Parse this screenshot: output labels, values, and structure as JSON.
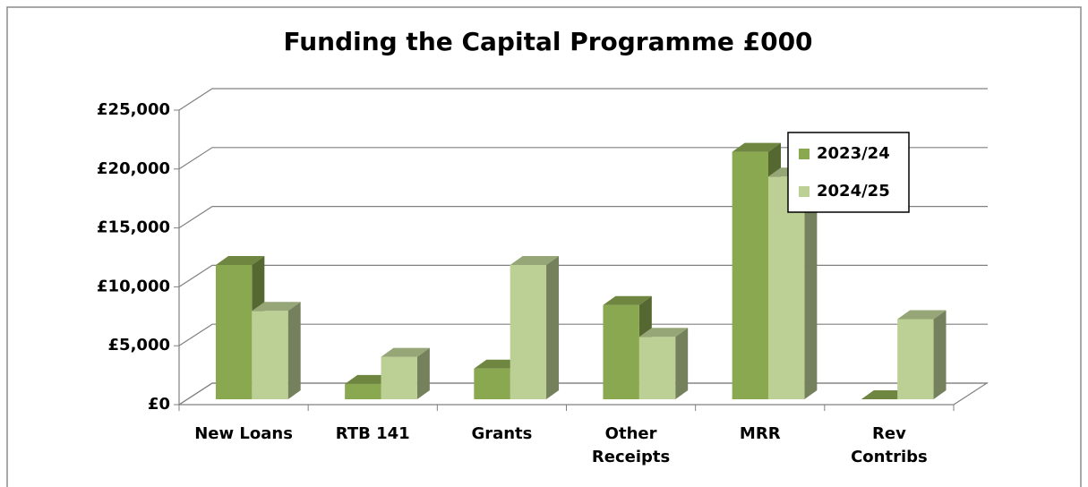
{
  "chart_data": {
    "type": "bar3d",
    "title": "Funding the Capital Programme £000",
    "categories": [
      "New Loans",
      "RTB 141",
      "Grants",
      "Other Receipts",
      "MRR",
      "Rev Contribs"
    ],
    "series": [
      {
        "name": "2023/24",
        "color": "#8aa84f",
        "values": [
          11400,
          1300,
          2600,
          8000,
          21000,
          0
        ]
      },
      {
        "name": "2024/25",
        "color": "#bccf94",
        "values": [
          7500,
          3600,
          11400,
          5300,
          18900,
          6800
        ]
      }
    ],
    "ylim": [
      0,
      25000
    ],
    "yticks": [
      {
        "value": 0,
        "label": "£0"
      },
      {
        "value": 5000,
        "label": "£5,000"
      },
      {
        "value": 10000,
        "label": "£10,000"
      },
      {
        "value": 15000,
        "label": "£15,000"
      },
      {
        "value": 20000,
        "label": "£20,000"
      },
      {
        "value": 25000,
        "label": "£25,000"
      }
    ],
    "grid": true,
    "legend": "top-right"
  }
}
